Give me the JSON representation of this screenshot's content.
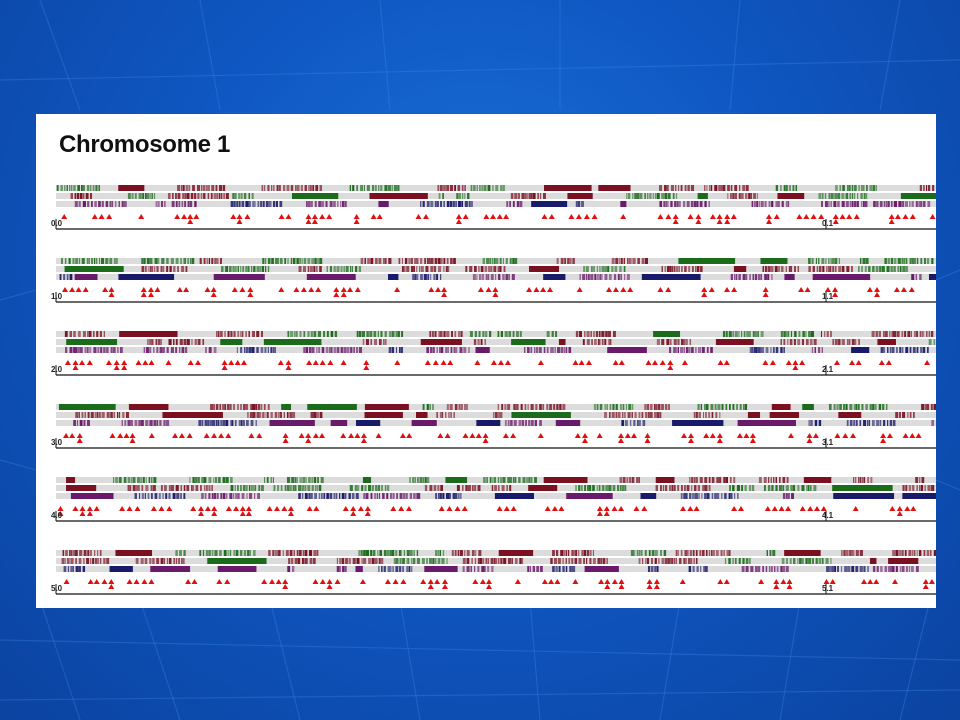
{
  "slide": {
    "colors": {
      "background": "#0f57c2",
      "panel": "#ffffff",
      "title": "#111111"
    }
  },
  "figure": {
    "title": "Chromosome 1",
    "colors": {
      "lane_bg": "#dcdcdc",
      "maroon": "#7a1020",
      "green": "#1a6b1a",
      "purple": "#6a1a6a",
      "navy": "#1a1a6a",
      "marker": "#e01010",
      "axis": "#111111"
    },
    "marker_shape": "triangle",
    "rows": [
      {
        "start_label": "0.0",
        "mid_label": "0.1"
      },
      {
        "start_label": "1.0",
        "mid_label": "1.1"
      },
      {
        "start_label": "2.0",
        "mid_label": "2.1"
      },
      {
        "start_label": "3.0",
        "mid_label": "3.1"
      },
      {
        "start_label": "4.0",
        "mid_label": "4.1"
      },
      {
        "start_label": "5.0",
        "mid_label": "5.1"
      }
    ]
  }
}
